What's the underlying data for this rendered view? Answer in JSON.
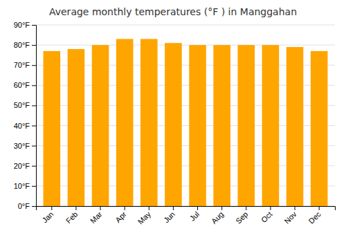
{
  "chart_data": {
    "type": "bar",
    "title": "Average monthly temperatures (°F ) in Manggahan",
    "categories": [
      "Jan",
      "Feb",
      "Mar",
      "Apr",
      "May",
      "Jun",
      "Jul",
      "Aug",
      "Sep",
      "Oct",
      "Nov",
      "Dec"
    ],
    "values": [
      77,
      78,
      80,
      83,
      83,
      81,
      80,
      80,
      80,
      80,
      79,
      77
    ],
    "color": "#FFA500",
    "ylim": [
      0,
      90
    ],
    "yticks": [
      {
        "value": 0,
        "label": "0°F"
      },
      {
        "value": 10,
        "label": "10°F"
      },
      {
        "value": 20,
        "label": "20°F"
      },
      {
        "value": 30,
        "label": "30°F"
      },
      {
        "value": 40,
        "label": "40°F"
      },
      {
        "value": 50,
        "label": "50°F"
      },
      {
        "value": 60,
        "label": "60°F"
      },
      {
        "value": 70,
        "label": "70°F"
      },
      {
        "value": 80,
        "label": "80°F"
      },
      {
        "value": 90,
        "label": "90°F"
      }
    ],
    "grid": true
  }
}
